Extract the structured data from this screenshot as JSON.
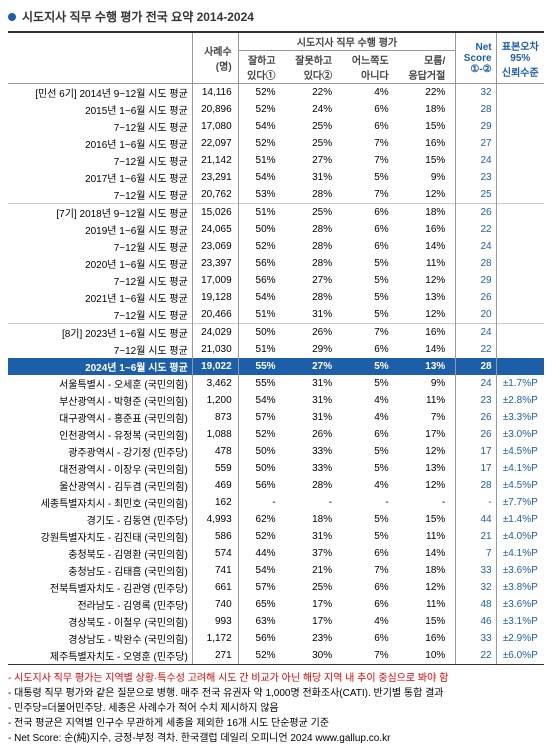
{
  "title": "시도지사 직무 수행 평가 전국 요약 2014-2024",
  "headers": {
    "n": "사례수\n(명)",
    "group": "시도지사 직무 수행 평가",
    "good": "잘하고\n있다①",
    "bad": "잘못하고\n있다②",
    "neither": "어느쪽도\n아니다",
    "dk": "모름/\n응답거절",
    "net": "Net\nScore\n①-②",
    "ci": "표본오차\n95%\n신뢰수준"
  },
  "rows": [
    {
      "section": true,
      "label": "[민선 6기] 2014년 9~12월 시도 평균",
      "n": "14,116",
      "good": "52%",
      "bad": "22%",
      "neither": "4%",
      "dk": "22%",
      "net": "32",
      "ci": ""
    },
    {
      "label": "2015년 1~6월 시도 평균",
      "n": "20,896",
      "good": "52%",
      "bad": "24%",
      "neither": "6%",
      "dk": "18%",
      "net": "28",
      "ci": ""
    },
    {
      "label": "7~12월 시도 평균",
      "n": "17,080",
      "good": "54%",
      "bad": "25%",
      "neither": "6%",
      "dk": "15%",
      "net": "29",
      "ci": ""
    },
    {
      "label": "2016년 1~6월 시도 평균",
      "n": "22,097",
      "good": "52%",
      "bad": "25%",
      "neither": "7%",
      "dk": "16%",
      "net": "27",
      "ci": ""
    },
    {
      "label": "7~12월 시도 평균",
      "n": "21,142",
      "good": "51%",
      "bad": "27%",
      "neither": "7%",
      "dk": "15%",
      "net": "24",
      "ci": ""
    },
    {
      "label": "2017년 1~6월 시도 평균",
      "n": "23,291",
      "good": "54%",
      "bad": "31%",
      "neither": "5%",
      "dk": "9%",
      "net": "23",
      "ci": ""
    },
    {
      "label": "7~12월 시도 평균",
      "n": "20,762",
      "good": "53%",
      "bad": "28%",
      "neither": "7%",
      "dk": "12%",
      "net": "25",
      "ci": ""
    },
    {
      "section": true,
      "label": "[7기] 2018년 9~12월 시도 평균",
      "n": "15,026",
      "good": "51%",
      "bad": "25%",
      "neither": "6%",
      "dk": "18%",
      "net": "26",
      "ci": ""
    },
    {
      "label": "2019년 1~6월 시도 평균",
      "n": "24,065",
      "good": "50%",
      "bad": "28%",
      "neither": "6%",
      "dk": "16%",
      "net": "22",
      "ci": ""
    },
    {
      "label": "7~12월 시도 평균",
      "n": "23,069",
      "good": "52%",
      "bad": "28%",
      "neither": "6%",
      "dk": "14%",
      "net": "24",
      "ci": ""
    },
    {
      "label": "2020년 1~6월 시도 평균",
      "n": "23,397",
      "good": "56%",
      "bad": "28%",
      "neither": "5%",
      "dk": "11%",
      "net": "28",
      "ci": ""
    },
    {
      "label": "7~12월 시도 평균",
      "n": "17,009",
      "good": "56%",
      "bad": "27%",
      "neither": "5%",
      "dk": "12%",
      "net": "29",
      "ci": ""
    },
    {
      "label": "2021년 1~6월 시도 평균",
      "n": "19,128",
      "good": "54%",
      "bad": "28%",
      "neither": "5%",
      "dk": "13%",
      "net": "26",
      "ci": ""
    },
    {
      "label": "7~12월 시도 평균",
      "n": "20,466",
      "good": "51%",
      "bad": "31%",
      "neither": "5%",
      "dk": "12%",
      "net": "20",
      "ci": ""
    },
    {
      "section": true,
      "label": "[8기] 2023년 1~6월 시도 평균",
      "n": "24,029",
      "good": "50%",
      "bad": "26%",
      "neither": "7%",
      "dk": "16%",
      "net": "24",
      "ci": ""
    },
    {
      "label": "7~12월 시도 평균",
      "n": "21,030",
      "good": "51%",
      "bad": "29%",
      "neither": "6%",
      "dk": "14%",
      "net": "22",
      "ci": ""
    },
    {
      "hl": true,
      "label": "2024년 1~6월 시도 평균",
      "n": "19,022",
      "good": "55%",
      "bad": "27%",
      "neither": "5%",
      "dk": "13%",
      "net": "28",
      "ci": ""
    },
    {
      "label": "서울특별시 - 오세훈 (국민의힘)",
      "n": "3,462",
      "good": "55%",
      "bad": "31%",
      "neither": "5%",
      "dk": "9%",
      "net": "24",
      "ci": "±1.7%P"
    },
    {
      "label": "부산광역시 - 박형준 (국민의힘)",
      "n": "1,200",
      "good": "54%",
      "bad": "31%",
      "neither": "4%",
      "dk": "11%",
      "net": "23",
      "ci": "±2.8%P"
    },
    {
      "label": "대구광역시 - 홍준표 (국민의힘)",
      "n": "873",
      "good": "57%",
      "bad": "31%",
      "neither": "4%",
      "dk": "7%",
      "net": "26",
      "ci": "±3.3%P"
    },
    {
      "label": "인천광역시 - 유정복 (국민의힘)",
      "n": "1,088",
      "good": "52%",
      "bad": "26%",
      "neither": "6%",
      "dk": "17%",
      "net": "26",
      "ci": "±3.0%P"
    },
    {
      "label": "광주광역시 - 강기정 (민주당)",
      "n": "478",
      "good": "50%",
      "bad": "33%",
      "neither": "5%",
      "dk": "12%",
      "net": "17",
      "ci": "±4.5%P"
    },
    {
      "label": "대전광역시 - 이장우 (국민의힘)",
      "n": "559",
      "good": "50%",
      "bad": "33%",
      "neither": "5%",
      "dk": "13%",
      "net": "17",
      "ci": "±4.1%P"
    },
    {
      "label": "울산광역시 - 김두겸 (국민의힘)",
      "n": "469",
      "good": "56%",
      "bad": "28%",
      "neither": "4%",
      "dk": "12%",
      "net": "28",
      "ci": "±4.5%P"
    },
    {
      "label": "세종특별자치시 - 최민호 (국민의힘)",
      "n": "162",
      "good": "-",
      "bad": "-",
      "neither": "-",
      "dk": "-",
      "net": "-",
      "ci": "±7.7%P"
    },
    {
      "label": "경기도 - 김동연 (민주당)",
      "n": "4,993",
      "good": "62%",
      "bad": "18%",
      "neither": "5%",
      "dk": "15%",
      "net": "44",
      "ci": "±1.4%P"
    },
    {
      "label": "강원특별자치도 - 김진태 (국민의힘)",
      "n": "586",
      "good": "52%",
      "bad": "31%",
      "neither": "5%",
      "dk": "11%",
      "net": "21",
      "ci": "±4.0%P"
    },
    {
      "label": "충청북도 - 김영환 (국민의힘)",
      "n": "574",
      "good": "44%",
      "bad": "37%",
      "neither": "6%",
      "dk": "14%",
      "net": "7",
      "ci": "±4.1%P"
    },
    {
      "label": "충청남도 - 김태흠 (국민의힘)",
      "n": "741",
      "good": "54%",
      "bad": "21%",
      "neither": "7%",
      "dk": "18%",
      "net": "33",
      "ci": "±3.6%P"
    },
    {
      "label": "전북특별자치도 - 김관영 (민주당)",
      "n": "661",
      "good": "57%",
      "bad": "25%",
      "neither": "6%",
      "dk": "12%",
      "net": "32",
      "ci": "±3.8%P"
    },
    {
      "label": "전라남도 - 김영록 (민주당)",
      "n": "740",
      "good": "65%",
      "bad": "17%",
      "neither": "6%",
      "dk": "11%",
      "net": "48",
      "ci": "±3.6%P"
    },
    {
      "label": "경상북도 - 이철우 (국민의힘)",
      "n": "993",
      "good": "63%",
      "bad": "17%",
      "neither": "4%",
      "dk": "15%",
      "net": "46",
      "ci": "±3.1%P"
    },
    {
      "label": "경상남도 - 박완수 (국민의힘)",
      "n": "1,172",
      "good": "56%",
      "bad": "23%",
      "neither": "6%",
      "dk": "16%",
      "net": "33",
      "ci": "±2.9%P"
    },
    {
      "last": true,
      "label": "제주특별자치도 - 오영훈 (민주당)",
      "n": "271",
      "good": "52%",
      "bad": "30%",
      "neither": "7%",
      "dk": "10%",
      "net": "22",
      "ci": "±6.0%P"
    }
  ],
  "notes": [
    {
      "red": true,
      "text": "- 시도지사 직무 평가는 지역별 상황·특수성 고려해 시도 간 비교가 아닌 해당 지역 내 추이 중심으로 봐야 함"
    },
    {
      "text": "- 대통령 직무 평가와 같은 질문으로 병행. 매주 전국 유권자 약 1,000명 전화조사(CATI). 반기별 통합 결과"
    },
    {
      "text": "- 민주당=더불어민주당. 세종은 사례수가 적어 수치 제시하지 않음"
    },
    {
      "text": "- 전국 평균은 지역별 인구수 무관하게 세종을 제외한 16개 시도 단순평균 기준"
    },
    {
      "text": "- Net Score: 순(純)지수, 긍정-부정 격차. 한국갤럽 데일리 오피니언 2024 www.gallup.co.kr"
    }
  ]
}
